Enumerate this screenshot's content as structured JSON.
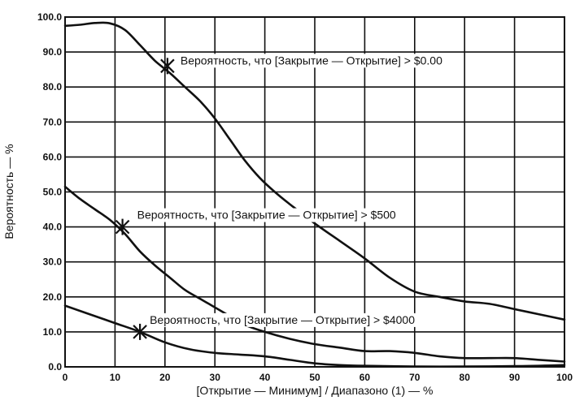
{
  "chart_data": {
    "type": "line",
    "xlabel": "[Открытие — Минимум] / Диапазоно (1) — %",
    "ylabel": "Вероятность — %",
    "xlim": [
      0,
      100
    ],
    "ylim": [
      0,
      100
    ],
    "x_ticks": [
      "0",
      "10",
      "20",
      "30",
      "40",
      "50",
      "60",
      "70",
      "80",
      "90",
      "100"
    ],
    "y_ticks": [
      "0.0",
      "10.0",
      "20.0",
      "30.0",
      "40.0",
      "50.0",
      "60.0",
      "70.0",
      "80.0",
      "90.0",
      "100.0"
    ],
    "grid": true,
    "series": [
      {
        "name": "Вероятность, что [Закрытие — Открытие] > $0.00",
        "x": [
          0,
          3,
          6,
          9,
          12,
          15,
          18,
          21,
          24,
          27,
          30,
          33,
          36,
          39,
          42,
          45,
          50,
          55,
          60,
          65,
          70,
          75,
          80,
          85,
          90,
          95,
          100
        ],
        "y": [
          97.5,
          97.8,
          98.3,
          98.2,
          96.3,
          92,
          87.5,
          84,
          80,
          76,
          71,
          65,
          59,
          54,
          50,
          46.5,
          41,
          36,
          31,
          25.5,
          21.5,
          20,
          18.7,
          18,
          16.5,
          15,
          13.5
        ],
        "marker": {
          "x": 20.5,
          "y": 86
        }
      },
      {
        "name": "Вероятность, что [Закрытие — Открытие] > $500",
        "x": [
          0,
          3,
          6,
          9,
          12,
          15,
          18,
          21,
          24,
          27,
          30,
          33,
          36,
          40,
          45,
          50,
          55,
          60,
          65,
          70,
          75,
          80,
          85,
          90,
          95,
          100
        ],
        "y": [
          51.5,
          48,
          45,
          42,
          38,
          33,
          29,
          25.5,
          22,
          19.5,
          17,
          14.5,
          12,
          10,
          8,
          6.5,
          5.5,
          4.5,
          4.5,
          4,
          3,
          2.5,
          2.5,
          2.5,
          2,
          1.5
        ],
        "marker": {
          "x": 11.5,
          "y": 40
        }
      },
      {
        "name": "Вероятность, что [Закрытие — Открытие] > $4000",
        "x": [
          0,
          5,
          10,
          15,
          20,
          25,
          30,
          35,
          40,
          45,
          50,
          55,
          60,
          70,
          80,
          90,
          100
        ],
        "y": [
          17.5,
          15,
          12.5,
          10,
          7,
          5,
          4,
          3.5,
          3,
          2,
          1,
          0.5,
          0.3,
          0.1,
          0.1,
          0.2,
          0.5
        ],
        "marker": {
          "x": 15,
          "y": 10
        }
      }
    ]
  }
}
